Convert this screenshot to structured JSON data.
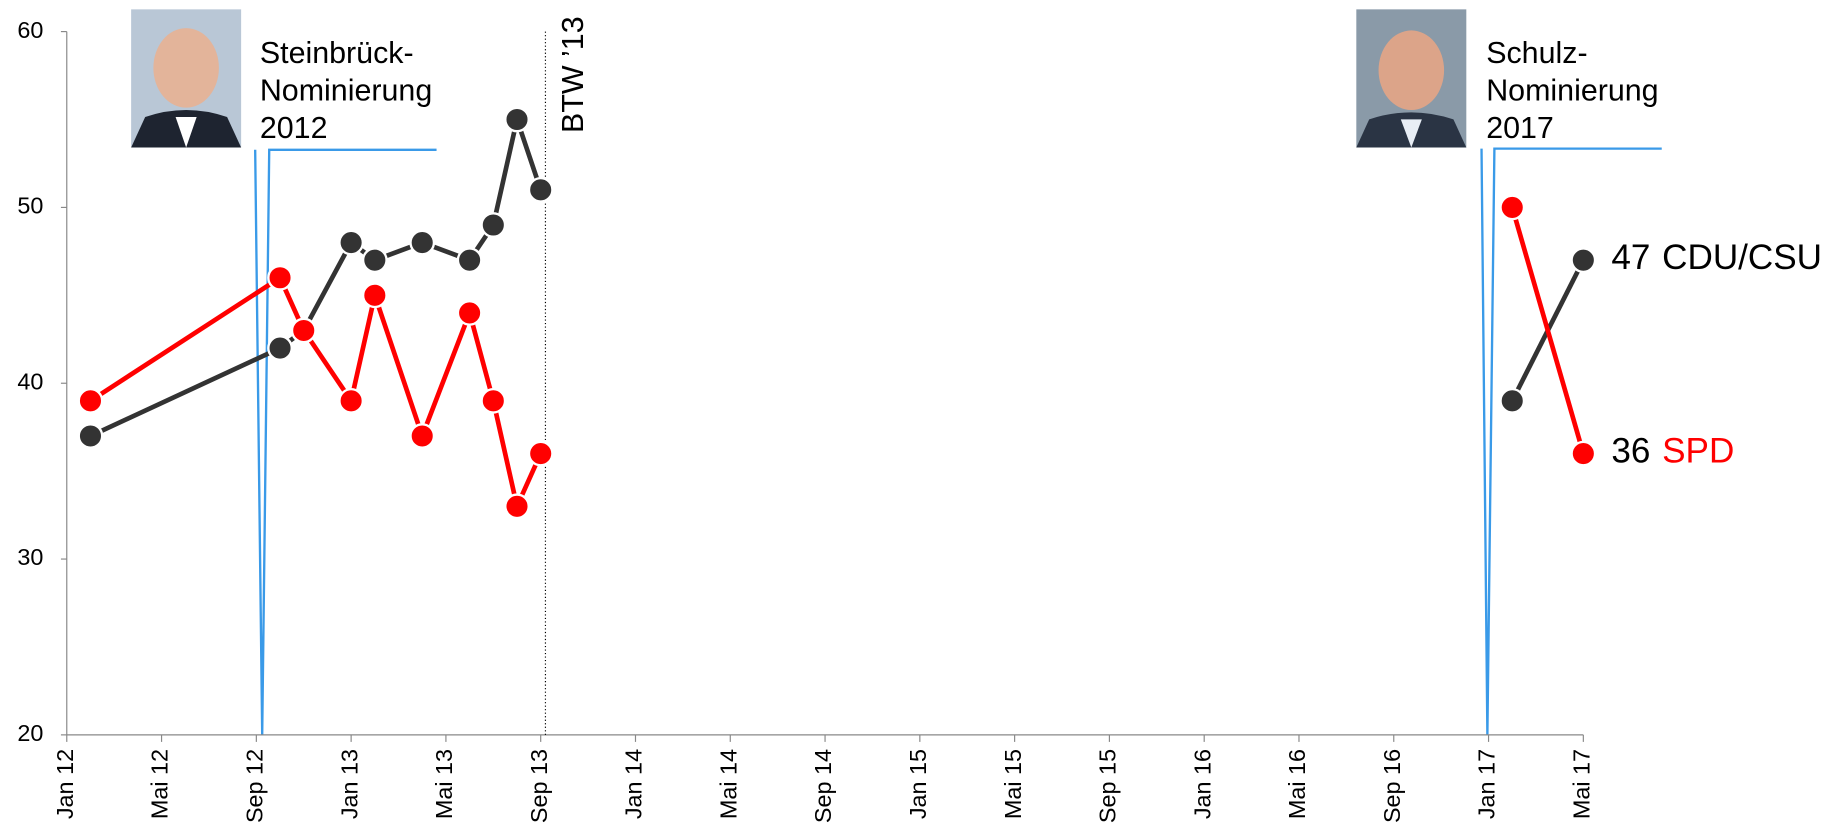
{
  "chart_data": {
    "type": "line",
    "x": [
      1,
      9,
      10,
      12,
      13,
      15,
      17,
      18,
      19,
      20,
      null,
      61,
      64
    ],
    "xlim": [
      0,
      64
    ],
    "xticks": [
      {
        "value": 0,
        "label": "Jan 12"
      },
      {
        "value": 4,
        "label": "Mai 12"
      },
      {
        "value": 8,
        "label": "Sep 12"
      },
      {
        "value": 12,
        "label": "Jan 13"
      },
      {
        "value": 16,
        "label": "Mai 13"
      },
      {
        "value": 20,
        "label": "Sep 13"
      },
      {
        "value": 24,
        "label": "Jan 14"
      },
      {
        "value": 28,
        "label": "Mai 14"
      },
      {
        "value": 32,
        "label": "Sep 14"
      },
      {
        "value": 36,
        "label": "Jan 15"
      },
      {
        "value": 40,
        "label": "Mai 15"
      },
      {
        "value": 44,
        "label": "Sep 15"
      },
      {
        "value": 48,
        "label": "Jan 16"
      },
      {
        "value": 52,
        "label": "Mai 16"
      },
      {
        "value": 56,
        "label": "Sep 16"
      },
      {
        "value": 60,
        "label": "Jan 17"
      },
      {
        "value": 64,
        "label": "Mai 17"
      }
    ],
    "ylim": [
      20,
      60
    ],
    "yticks": [
      20,
      30,
      40,
      50,
      60
    ],
    "series": [
      {
        "name": "CDU/CSU",
        "color": "#333333",
        "values": [
          37,
          42,
          43,
          48,
          47,
          48,
          47,
          49,
          55,
          51,
          null,
          39,
          47
        ]
      },
      {
        "name": "SPD",
        "color": "#ff0000",
        "values": [
          39,
          46,
          43,
          39,
          45,
          37,
          44,
          39,
          33,
          36,
          null,
          50,
          36
        ]
      }
    ],
    "annotations": [
      {
        "lines": [
          "Steinbrück-",
          "Nominierung",
          "2012"
        ]
      },
      {
        "lines": [
          "Schulz-",
          "Nominierung",
          "2017"
        ]
      },
      {
        "text": "BTW ’13",
        "x": 20.2
      }
    ]
  }
}
